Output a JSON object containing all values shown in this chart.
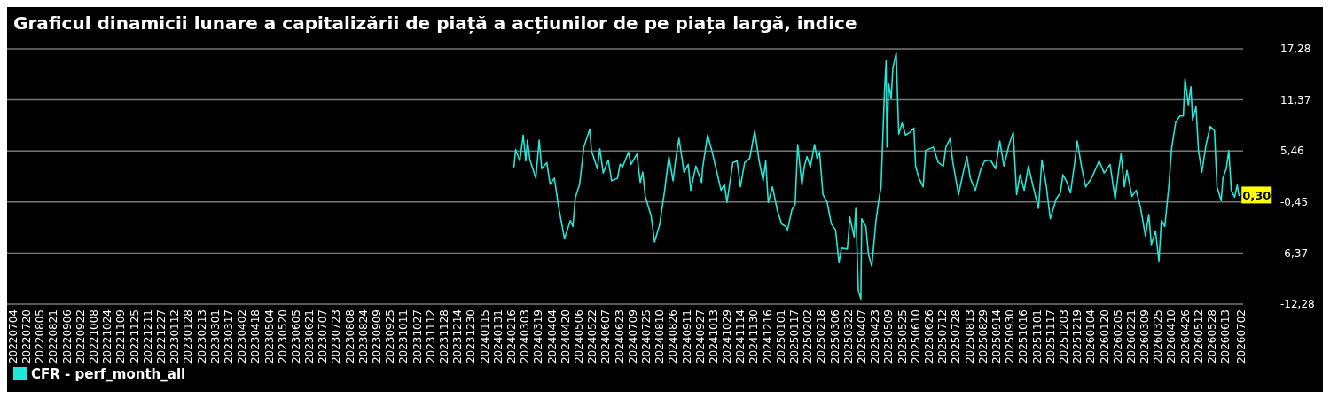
{
  "chart_data": {
    "type": "line",
    "title": "Graficul dinamicii lunare a capitalizării de piață a acțiunilor de pe piața largă, indice",
    "xlim": [
      "2022-06-27",
      "2026-07-04"
    ],
    "xticks": [
      {
        "value": "2022-07-04",
        "label": "20220704"
      },
      {
        "value": "2022-07-20",
        "label": "20220720"
      },
      {
        "value": "2022-08-05",
        "label": "20220805"
      },
      {
        "value": "2022-08-21",
        "label": "20220821"
      },
      {
        "value": "2022-09-06",
        "label": "20220906"
      },
      {
        "value": "2022-09-22",
        "label": "20220922"
      },
      {
        "value": "2022-10-08",
        "label": "20221008"
      },
      {
        "value": "2022-10-24",
        "label": "20221024"
      },
      {
        "value": "2022-11-09",
        "label": "20221109"
      },
      {
        "value": "2022-11-25",
        "label": "20221125"
      },
      {
        "value": "2022-12-11",
        "label": "20221211"
      },
      {
        "value": "2022-12-27",
        "label": "20221227"
      },
      {
        "value": "2023-01-12",
        "label": "20230112"
      },
      {
        "value": "2023-01-28",
        "label": "20230128"
      },
      {
        "value": "2023-02-13",
        "label": "20230213"
      },
      {
        "value": "2023-03-01",
        "label": "20230301"
      },
      {
        "value": "2023-03-17",
        "label": "20230317"
      },
      {
        "value": "2023-04-02",
        "label": "20230402"
      },
      {
        "value": "2023-04-18",
        "label": "20230418"
      },
      {
        "value": "2023-05-04",
        "label": "20230504"
      },
      {
        "value": "2023-05-20",
        "label": "20230520"
      },
      {
        "value": "2023-06-05",
        "label": "20230605"
      },
      {
        "value": "2023-06-21",
        "label": "20230621"
      },
      {
        "value": "2023-07-07",
        "label": "20230707"
      },
      {
        "value": "2023-07-23",
        "label": "20230723"
      },
      {
        "value": "2023-08-08",
        "label": "20230808"
      },
      {
        "value": "2023-08-24",
        "label": "20230824"
      },
      {
        "value": "2023-09-09",
        "label": "20230909"
      },
      {
        "value": "2023-09-25",
        "label": "20230925"
      },
      {
        "value": "2023-10-11",
        "label": "20231011"
      },
      {
        "value": "2023-10-27",
        "label": "20231027"
      },
      {
        "value": "2023-11-12",
        "label": "20231112"
      },
      {
        "value": "2023-11-28",
        "label": "20231128"
      },
      {
        "value": "2023-12-14",
        "label": "20231214"
      },
      {
        "value": "2023-12-30",
        "label": "20231230"
      },
      {
        "value": "2024-01-15",
        "label": "20240115"
      },
      {
        "value": "2024-01-31",
        "label": "20240131"
      },
      {
        "value": "2024-02-16",
        "label": "20240216"
      },
      {
        "value": "2024-03-03",
        "label": "20240303"
      },
      {
        "value": "2024-03-19",
        "label": "20240319"
      },
      {
        "value": "2024-04-04",
        "label": "20240404"
      },
      {
        "value": "2024-04-20",
        "label": "20240420"
      },
      {
        "value": "2024-05-06",
        "label": "20240506"
      },
      {
        "value": "2024-05-22",
        "label": "20240522"
      },
      {
        "value": "2024-06-07",
        "label": "20240607"
      },
      {
        "value": "2024-06-23",
        "label": "20240623"
      },
      {
        "value": "2024-07-09",
        "label": "20240709"
      },
      {
        "value": "2024-07-25",
        "label": "20240725"
      },
      {
        "value": "2024-08-10",
        "label": "20240810"
      },
      {
        "value": "2024-08-26",
        "label": "20240826"
      },
      {
        "value": "2024-09-11",
        "label": "20240911"
      },
      {
        "value": "2024-09-27",
        "label": "20240927"
      },
      {
        "value": "2024-10-13",
        "label": "20241013"
      },
      {
        "value": "2024-10-29",
        "label": "20241029"
      },
      {
        "value": "2024-11-14",
        "label": "20241114"
      },
      {
        "value": "2024-11-30",
        "label": "20241130"
      },
      {
        "value": "2024-12-16",
        "label": "20241216"
      },
      {
        "value": "2025-01-01",
        "label": "20250101"
      },
      {
        "value": "2025-01-17",
        "label": "20250117"
      },
      {
        "value": "2025-02-02",
        "label": "20250202"
      },
      {
        "value": "2025-02-18",
        "label": "20250218"
      },
      {
        "value": "2025-03-06",
        "label": "20250306"
      },
      {
        "value": "2025-03-22",
        "label": "20250322"
      },
      {
        "value": "2025-04-07",
        "label": "20250407"
      },
      {
        "value": "2025-04-23",
        "label": "20250423"
      },
      {
        "value": "2025-05-09",
        "label": "20250509"
      },
      {
        "value": "2025-05-25",
        "label": "20250525"
      },
      {
        "value": "2025-06-10",
        "label": "20250610"
      },
      {
        "value": "2025-06-26",
        "label": "20250626"
      },
      {
        "value": "2025-07-12",
        "label": "20250712"
      },
      {
        "value": "2025-07-28",
        "label": "20250728"
      },
      {
        "value": "2025-08-13",
        "label": "20250813"
      },
      {
        "value": "2025-08-29",
        "label": "20250829"
      },
      {
        "value": "2025-09-14",
        "label": "20250914"
      },
      {
        "value": "2025-09-30",
        "label": "20250930"
      },
      {
        "value": "2025-10-16",
        "label": "20251016"
      },
      {
        "value": "2025-11-01",
        "label": "20251101"
      },
      {
        "value": "2025-11-17",
        "label": "20251117"
      },
      {
        "value": "2025-12-03",
        "label": "20251203"
      },
      {
        "value": "2025-12-19",
        "label": "20251219"
      },
      {
        "value": "2026-01-04",
        "label": "20260104"
      },
      {
        "value": "2026-01-20",
        "label": "20260120"
      },
      {
        "value": "2026-02-05",
        "label": "20260205"
      },
      {
        "value": "2026-02-21",
        "label": "20260221"
      },
      {
        "value": "2026-03-09",
        "label": "20260309"
      },
      {
        "value": "2026-03-25",
        "label": "20260325"
      },
      {
        "value": "2026-04-10",
        "label": "20260410"
      },
      {
        "value": "2026-04-26",
        "label": "20260426"
      },
      {
        "value": "2026-05-12",
        "label": "20260512"
      },
      {
        "value": "2026-05-28",
        "label": "20260528"
      },
      {
        "value": "2026-06-13",
        "label": "20260613"
      },
      {
        "value": "2026-07-02",
        "label": "20260702"
      }
    ],
    "ylim": [
      -12.28,
      17.28
    ],
    "yticks": [
      {
        "value": -12.28,
        "label": "-12,28"
      },
      {
        "value": -6.37,
        "label": "-6,37"
      },
      {
        "value": -0.45,
        "label": "-0,45"
      },
      {
        "value": 5.46,
        "label": "5,46"
      },
      {
        "value": 11.37,
        "label": "11,37"
      },
      {
        "value": 17.28,
        "label": "17,28"
      }
    ],
    "grid": "y",
    "legend": "bottom",
    "annotations": [
      {
        "text": "0,30",
        "x": "2026-06-29",
        "y": 0.3
      }
    ],
    "series": [
      {
        "name": "CFR - perf_month_all",
        "color": "#1ee8d8",
        "x": [
          "2024-02-19",
          "2024-02-21",
          "2024-02-26",
          "2024-03-01",
          "2024-03-04",
          "2024-03-06",
          "2024-03-09",
          "2024-03-16",
          "2024-03-20",
          "2024-03-23",
          "2024-03-29",
          "2024-04-02",
          "2024-04-07",
          "2024-04-12",
          "2024-04-19",
          "2024-04-26",
          "2024-04-29",
          "2024-05-02",
          "2024-05-07",
          "2024-05-12",
          "2024-05-19",
          "2024-05-21",
          "2024-05-28",
          "2024-05-31",
          "2024-06-04",
          "2024-06-10",
          "2024-06-14",
          "2024-06-21",
          "2024-06-24",
          "2024-06-27",
          "2024-07-04",
          "2024-07-07",
          "2024-07-14",
          "2024-07-18",
          "2024-07-21",
          "2024-07-24",
          "2024-07-31",
          "2024-08-04",
          "2024-08-10",
          "2024-08-16",
          "2024-08-21",
          "2024-08-26",
          "2024-08-29",
          "2024-09-02",
          "2024-09-08",
          "2024-09-13",
          "2024-09-16",
          "2024-09-22",
          "2024-09-29",
          "2024-09-30",
          "2024-10-06",
          "2024-10-11",
          "2024-10-17",
          "2024-10-22",
          "2024-10-26",
          "2024-10-29",
          "2024-11-05",
          "2024-11-10",
          "2024-11-14",
          "2024-11-19",
          "2024-11-25",
          "2024-12-01",
          "2024-12-06",
          "2024-12-11",
          "2024-12-14",
          "2024-12-17",
          "2024-12-22",
          "2024-12-28",
          "2025-01-02",
          "2025-01-07",
          "2025-01-09",
          "2025-01-14",
          "2025-01-18",
          "2025-01-21",
          "2025-01-26",
          "2025-01-29",
          "2025-02-01",
          "2025-02-05",
          "2025-02-10",
          "2025-02-13",
          "2025-02-16",
          "2025-02-20",
          "2025-02-25",
          "2025-03-02",
          "2025-03-07",
          "2025-03-11",
          "2025-03-14",
          "2025-03-21",
          "2025-03-24",
          "2025-03-29",
          "2025-03-31",
          "2025-04-03",
          "2025-04-06",
          "2025-04-07",
          "2025-04-12",
          "2025-04-15",
          "2025-04-19",
          "2025-04-24",
          "2025-04-27",
          "2025-04-30",
          "2025-05-04",
          "2025-05-06",
          "2025-05-07",
          "2025-05-09",
          "2025-05-12",
          "2025-05-14",
          "2025-05-18",
          "2025-05-21",
          "2025-05-25",
          "2025-05-29",
          "2025-06-03",
          "2025-06-08",
          "2025-06-10",
          "2025-06-14",
          "2025-06-19",
          "2025-06-22",
          "2025-07-01",
          "2025-07-07",
          "2025-07-13",
          "2025-07-16",
          "2025-07-21",
          "2025-07-24",
          "2025-07-31",
          "2025-08-05",
          "2025-08-10",
          "2025-08-14",
          "2025-08-20",
          "2025-08-26",
          "2025-08-31",
          "2025-09-07",
          "2025-09-13",
          "2025-09-18",
          "2025-09-23",
          "2025-09-29",
          "2025-10-04",
          "2025-10-08",
          "2025-10-12",
          "2025-10-17",
          "2025-10-22",
          "2025-10-27",
          "2025-11-03",
          "2025-11-07",
          "2025-11-12",
          "2025-11-17",
          "2025-11-24",
          "2025-11-29",
          "2025-12-02",
          "2025-12-07",
          "2025-12-11",
          "2025-12-16",
          "2025-12-19",
          "2025-12-24",
          "2025-12-29",
          "2026-01-05",
          "2026-01-10",
          "2026-01-14",
          "2026-01-20",
          "2026-01-27",
          "2026-02-02",
          "2026-02-06",
          "2026-02-09",
          "2026-02-13",
          "2026-02-16",
          "2026-02-22",
          "2026-02-27",
          "2026-03-04",
          "2026-03-10",
          "2026-03-14",
          "2026-03-17",
          "2026-03-22",
          "2026-03-26",
          "2026-03-29",
          "2026-04-02",
          "2026-04-07",
          "2026-04-10",
          "2026-04-15",
          "2026-04-20",
          "2026-04-24",
          "2026-04-26",
          "2026-04-30",
          "2026-05-03",
          "2026-05-05",
          "2026-05-09",
          "2026-05-12",
          "2026-05-16",
          "2026-05-21",
          "2026-05-26",
          "2026-05-31",
          "2026-06-03",
          "2026-06-08",
          "2026-06-10",
          "2026-06-14",
          "2026-06-17",
          "2026-06-20",
          "2026-06-24",
          "2026-06-27",
          "2026-06-29"
        ],
        "values": [
          3.6,
          5.6,
          4.3,
          7.3,
          4.3,
          6.7,
          4.4,
          2.3,
          6.7,
          3.4,
          4.1,
          1.6,
          2.3,
          -1.0,
          -4.7,
          -2.6,
          -3.3,
          0.1,
          1.6,
          5.9,
          8.0,
          5.5,
          3.4,
          5.7,
          2.9,
          4.4,
          2.0,
          2.3,
          3.9,
          3.6,
          5.3,
          3.9,
          5.1,
          1.8,
          3.0,
          0.2,
          -2.1,
          -5.1,
          -3.1,
          0.9,
          4.8,
          2.0,
          4.4,
          6.9,
          3.0,
          3.9,
          0.9,
          3.7,
          1.8,
          3.4,
          7.3,
          5.5,
          3.0,
          0.9,
          1.6,
          -0.5,
          4.1,
          4.3,
          1.3,
          4.1,
          4.6,
          7.8,
          4.4,
          2.0,
          4.3,
          -0.5,
          1.3,
          -1.5,
          -3.0,
          -3.3,
          -3.7,
          -1.4,
          -0.7,
          6.2,
          1.5,
          3.7,
          4.8,
          3.6,
          6.2,
          4.6,
          5.3,
          0.4,
          -0.5,
          -3.0,
          -3.7,
          -7.5,
          -5.8,
          -5.9,
          -2.2,
          -4.5,
          -1.2,
          -10.7,
          -11.7,
          -2.4,
          -3.3,
          -6.5,
          -7.9,
          -2.6,
          -0.5,
          1.3,
          12.2,
          15.9,
          5.9,
          13.2,
          11.5,
          15.0,
          16.8,
          7.4,
          8.7,
          7.3,
          7.6,
          8.1,
          3.7,
          2.3,
          1.3,
          5.5,
          5.9,
          4.1,
          3.7,
          5.9,
          6.9,
          4.3,
          0.4,
          2.7,
          4.8,
          2.3,
          0.9,
          3.2,
          4.3,
          4.4,
          3.4,
          6.6,
          3.7,
          6.2,
          7.6,
          0.4,
          2.7,
          0.9,
          3.7,
          1.6,
          -1.2,
          4.4,
          1.6,
          -2.4,
          -0.1,
          0.6,
          2.7,
          1.8,
          0.6,
          4.1,
          6.6,
          3.7,
          1.3,
          2.3,
          3.4,
          4.3,
          2.9,
          3.9,
          -0.1,
          3.0,
          5.1,
          1.3,
          3.2,
          0.2,
          0.9,
          -1.0,
          -4.4,
          -1.9,
          -5.4,
          -3.8,
          -7.3,
          -2.6,
          -3.3,
          1.6,
          5.7,
          8.8,
          9.5,
          9.5,
          13.8,
          10.8,
          12.9,
          9.0,
          10.6,
          5.5,
          3.0,
          6.2,
          8.3,
          7.8,
          1.3,
          -0.3,
          2.3,
          3.4,
          5.5,
          0.9,
          0.1,
          1.5,
          0.3
        ]
      }
    ]
  }
}
